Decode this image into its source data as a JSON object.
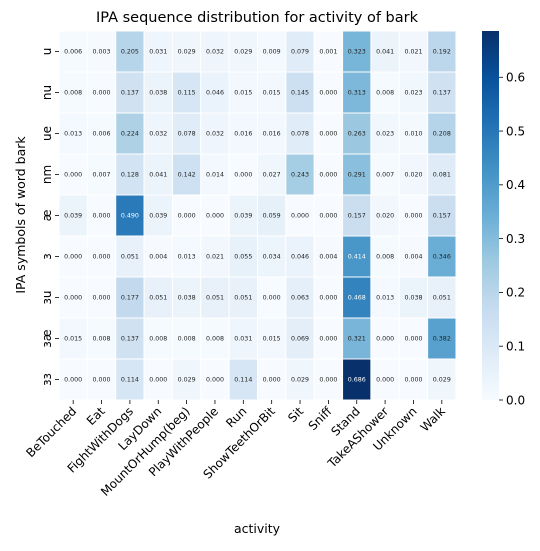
{
  "chart_data": {
    "type": "heatmap",
    "title": "IPA sequence distribution for activity of bark",
    "xlabel": "activity",
    "ylabel": "IPA symbols of word bark",
    "x_categories": [
      "BeTouched",
      "Eat",
      "FightWithDogs",
      "LayDown",
      "MountOrHump(beg)",
      "PlayWithPeople",
      "Run",
      "ShowTeethOrBit",
      "Sit",
      "Sniff",
      "Stand",
      "TakeAShower",
      "Unknown",
      "Walk"
    ],
    "y_categories": [
      "u",
      "nu",
      "ue",
      "nm",
      "æ",
      "ɜ",
      "ɜu",
      "ɜæ",
      "ɜɜ"
    ],
    "values": [
      [
        0.006,
        0.003,
        0.205,
        0.031,
        0.029,
        0.032,
        0.029,
        0.009,
        0.079,
        0.001,
        0.323,
        0.041,
        0.021,
        0.192
      ],
      [
        0.008,
        0.0,
        0.137,
        0.038,
        0.115,
        0.046,
        0.015,
        0.015,
        0.145,
        0.0,
        0.313,
        0.008,
        0.023,
        0.137
      ],
      [
        0.013,
        0.006,
        0.224,
        0.032,
        0.078,
        0.032,
        0.016,
        0.016,
        0.078,
        0.0,
        0.263,
        0.023,
        0.01,
        0.208
      ],
      [
        0.0,
        0.007,
        0.128,
        0.041,
        0.142,
        0.014,
        0.0,
        0.027,
        0.243,
        0.0,
        0.291,
        0.007,
        0.02,
        0.081
      ],
      [
        0.039,
        0.0,
        0.49,
        0.039,
        0.0,
        0.0,
        0.039,
        0.059,
        0.0,
        0.0,
        0.157,
        0.02,
        0.0,
        0.157
      ],
      [
        0.0,
        0.0,
        0.051,
        0.004,
        0.013,
        0.021,
        0.055,
        0.034,
        0.046,
        0.004,
        0.414,
        0.008,
        0.004,
        0.346
      ],
      [
        0.0,
        0.0,
        0.177,
        0.051,
        0.038,
        0.051,
        0.051,
        0.0,
        0.063,
        0.0,
        0.468,
        0.013,
        0.038,
        0.051
      ],
      [
        0.015,
        0.008,
        0.137,
        0.008,
        0.008,
        0.008,
        0.031,
        0.015,
        0.069,
        0.0,
        0.321,
        0.0,
        0.0,
        0.382
      ],
      [
        0.0,
        0.0,
        0.114,
        0.0,
        0.029,
        0.0,
        0.114,
        0.0,
        0.029,
        0.0,
        0.686,
        0.0,
        0.0,
        0.029
      ]
    ],
    "colorbar": {
      "colormap": "Blues",
      "range": [
        0.0,
        0.686
      ],
      "ticks": [
        0.0,
        0.1,
        0.2,
        0.3,
        0.4,
        0.5,
        0.6
      ]
    },
    "annotation_format": "3 decimals"
  }
}
